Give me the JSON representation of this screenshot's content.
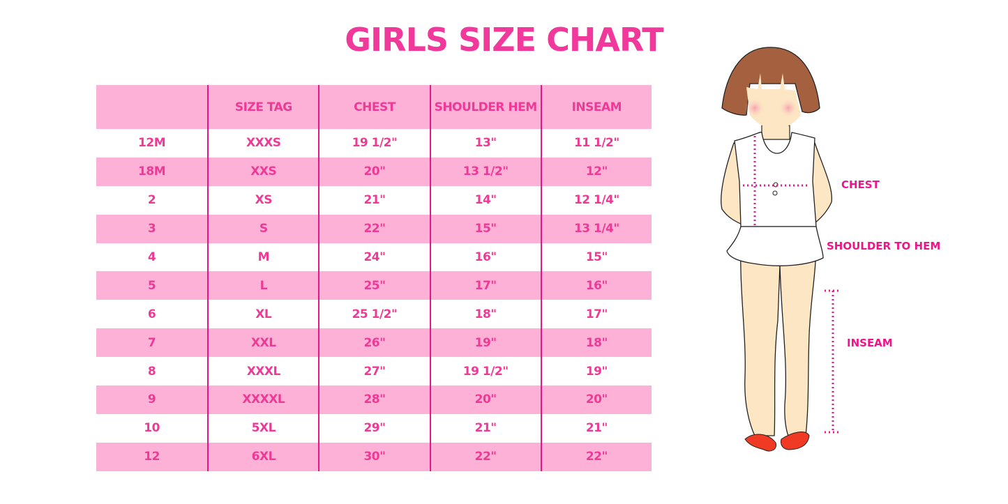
{
  "title": "GIRLS SIZE CHART",
  "table": {
    "headers": [
      "",
      "SIZE TAG",
      "CHEST",
      "SHOULDER HEM",
      "INSEAM"
    ],
    "rows": [
      [
        "12M",
        "XXXS",
        "19 1/2\"",
        "13\"",
        "11 1/2\""
      ],
      [
        "18M",
        "XXS",
        "20\"",
        "13 1/2\"",
        "12\""
      ],
      [
        "2",
        "XS",
        "21\"",
        "14\"",
        "12 1/4\""
      ],
      [
        "3",
        "S",
        "22\"",
        "15\"",
        "13 1/4\""
      ],
      [
        "4",
        "M",
        "24\"",
        "16\"",
        "15\""
      ],
      [
        "5",
        "L",
        "25\"",
        "17\"",
        "16\""
      ],
      [
        "6",
        "XL",
        "25 1/2\"",
        "18\"",
        "17\""
      ],
      [
        "7",
        "XXL",
        "26\"",
        "19\"",
        "18\""
      ],
      [
        "8",
        "XXXL",
        "27\"",
        "19 1/2\"",
        "19\""
      ],
      [
        "9",
        "XXXXL",
        "28\"",
        "20\"",
        "20\""
      ],
      [
        "10",
        "5XL",
        "29\"",
        "21\"",
        "21\""
      ],
      [
        "12",
        "6XL",
        "30\"",
        "22\"",
        "22\""
      ]
    ]
  },
  "figure": {
    "labels": {
      "chest": "CHEST",
      "shoulder_to_hem": "SHOULDER TO HEM",
      "inseam": "INSEAM"
    }
  },
  "colors": {
    "accent": "#f0399a",
    "row_pink": "#fdb1d6",
    "divider": "#e3168c",
    "measure_dots": "#f0148b"
  }
}
